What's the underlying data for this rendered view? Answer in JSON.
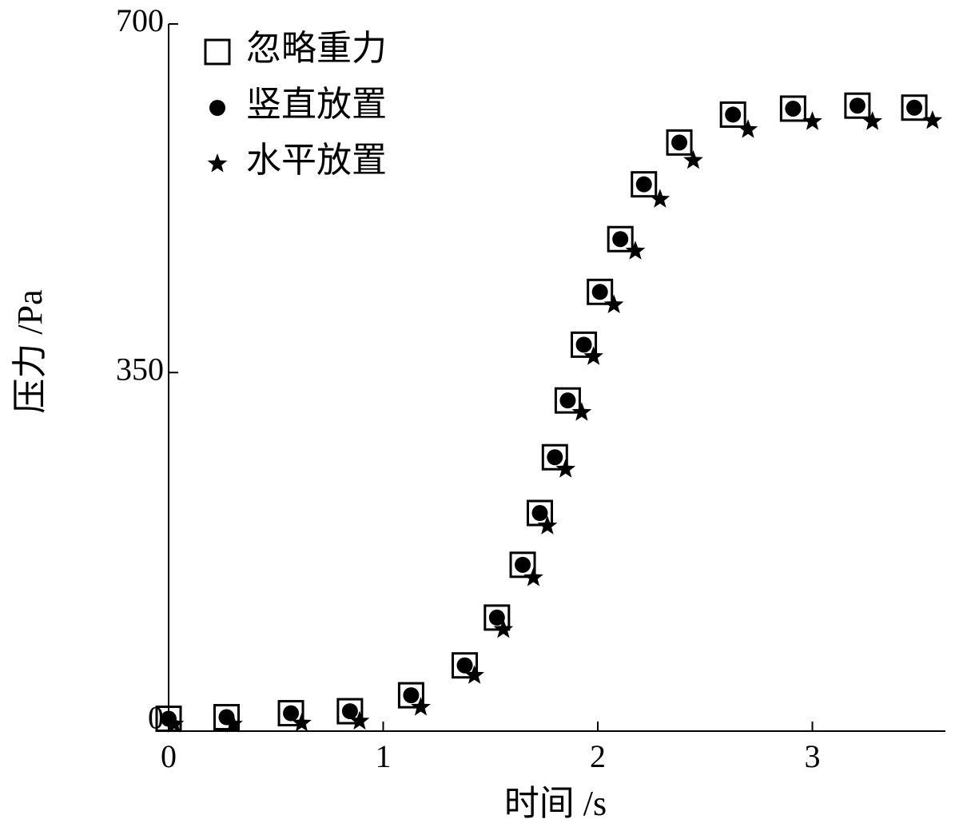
{
  "chart_data": {
    "type": "scatter",
    "x_label": "时间 /s",
    "y_label": "压力 /Pa",
    "xlim": [
      0,
      3.62
    ],
    "ylim": [
      -10,
      700
    ],
    "xticks": [
      0,
      1,
      2,
      3
    ],
    "yticks": [
      0,
      350,
      700
    ],
    "legend": "top-left",
    "series": [
      {
        "name": "忽略重力",
        "marker": "square-open",
        "color": "#000000",
        "x": [
          0,
          0.27,
          0.57,
          0.845,
          1.13,
          1.38,
          1.53,
          1.65,
          1.73,
          1.8,
          1.86,
          1.935,
          2.01,
          2.105,
          2.215,
          2.38,
          2.63,
          2.91,
          3.21,
          3.475
        ],
        "values": [
          2.4,
          4,
          8,
          10,
          26,
          56,
          104,
          157,
          209,
          265,
          322,
          378,
          431,
          484,
          539,
          581,
          609,
          615,
          618,
          616
        ]
      },
      {
        "name": "竖直放置",
        "marker": "circle-filled",
        "color": "#000000",
        "x": [
          0,
          0.27,
          0.57,
          0.845,
          1.13,
          1.38,
          1.53,
          1.65,
          1.73,
          1.8,
          1.86,
          1.935,
          2.01,
          2.105,
          2.215,
          2.38,
          2.63,
          2.91,
          3.21,
          3.475
        ],
        "values": [
          2.4,
          4,
          8,
          10,
          26,
          56,
          104,
          157,
          209,
          265,
          322,
          378,
          431,
          484,
          539,
          581,
          609,
          615,
          618,
          616
        ]
      },
      {
        "name": "水平放置",
        "marker": "star",
        "color": "#000000",
        "x": [
          0.026,
          0.3,
          0.62,
          0.89,
          1.175,
          1.425,
          1.56,
          1.7,
          1.765,
          1.85,
          1.925,
          1.98,
          2.075,
          2.175,
          2.29,
          2.445,
          2.7,
          3.0,
          3.28,
          3.56
        ],
        "values": [
          -3,
          -3,
          -2,
          0,
          14,
          46,
          92,
          144,
          196,
          253,
          310,
          366,
          418,
          472,
          524,
          563,
          594,
          602,
          602,
          603
        ]
      }
    ]
  }
}
